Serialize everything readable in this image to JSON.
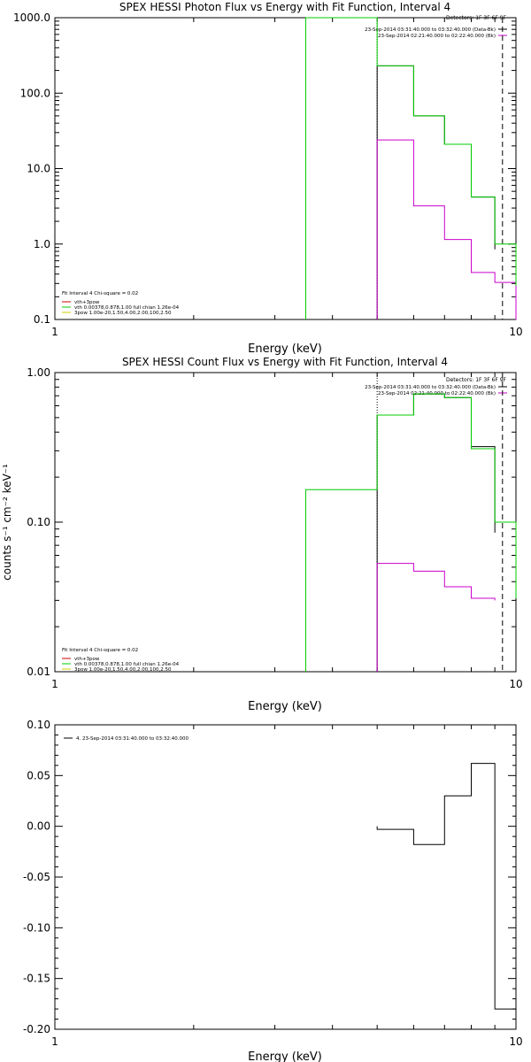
{
  "chart_data": [
    {
      "type": "line",
      "title": "SPEX HESSI Photon Flux vs Energy with Fit Function, Interval 4",
      "xlabel": "Energy (keV)",
      "ylabel": "",
      "xscale": "log",
      "yscale": "log",
      "xlim": [
        1,
        10
      ],
      "ylim": [
        0.1,
        1000
      ],
      "x_ticks": [
        "1",
        "10"
      ],
      "y_ticks": [
        "0.1",
        "1.0",
        "10.0",
        "100.0",
        "1000.0"
      ],
      "detectors_label": "Detectors: 1F 3F 6F 9F",
      "header_lines": [
        {
          "text": "23-Sep-2014 03:31:40.000 to 03:32:40.000 (Data-Bk)",
          "color": "#000000"
        },
        {
          "text": "23-Sep-2014 02:21:40.000 to 02:22:40.000 (Bk)",
          "color": "#cc00cc"
        }
      ],
      "fit_label": "Fit Interval  4   Chi-square = 0.02",
      "legend": [
        {
          "text": "vth+3pow",
          "color": "#cc0000"
        },
        {
          "text": "vth 0.00378,0.878,1.00  full chian 1.26e-04",
          "color": "#00cc00"
        },
        {
          "text": "3pow 1.00e-20,1.50,4.00,2.00,100,2.50",
          "color": "#cccc00"
        }
      ],
      "series": [
        {
          "name": "Data-Bk",
          "color": "#000000",
          "edges": [
            5,
            6,
            7,
            8,
            9
          ],
          "values": [
            230,
            50,
            21,
            4.2,
            0.85
          ]
        },
        {
          "name": "Bk",
          "color": "#cc00cc",
          "edges": [
            5,
            6,
            7,
            8,
            9,
            10
          ],
          "values": [
            24,
            3.2,
            1.15,
            0.42,
            0.31
          ]
        },
        {
          "name": "vth",
          "color": "#00cc00",
          "edges": [
            3.5,
            5,
            6,
            7,
            8,
            9,
            10
          ],
          "values": [
            1000,
            230,
            50,
            21,
            4.2,
            1.0,
            0.28
          ]
        }
      ],
      "vlines": [
        {
          "x": 5,
          "style": "dotted"
        },
        {
          "x": 9.35,
          "style": "dashed"
        }
      ]
    },
    {
      "type": "line",
      "title": "SPEX HESSI Count Flux vs Energy with Fit Function, Interval 4",
      "xlabel": "Energy (keV)",
      "ylabel": "counts s⁻¹ cm⁻² keV⁻¹",
      "xscale": "log",
      "yscale": "log",
      "xlim": [
        1,
        10
      ],
      "ylim": [
        0.01,
        1
      ],
      "x_ticks": [
        "1",
        "10"
      ],
      "y_ticks": [
        "0.01",
        "0.10",
        "1.00"
      ],
      "detectors_label": "Detectors: 1F 3F 6F 9F",
      "header_lines": [
        {
          "text": "23-Sep-2014 03:31:40.000 to 03:32:40.000 (Data-Bk)",
          "color": "#000000"
        },
        {
          "text": "23-Sep-2014 02:21:40.000 to 02:22:40.000 (Bk)",
          "color": "#cc00cc"
        }
      ],
      "fit_label": "Fit Interval  4   Chi-square = 0.02",
      "legend": [
        {
          "text": "vth+3pow",
          "color": "#cc0000"
        },
        {
          "text": "vth 0.00378,0.878,1.00  full chian 1.26e-04",
          "color": "#00cc00"
        },
        {
          "text": "3pow 1.00e-20,1.50,4.00,2.00,100,2.50",
          "color": "#cccc00"
        }
      ],
      "series": [
        {
          "name": "Data-Bk",
          "color": "#000000",
          "edges": [
            5,
            6,
            7,
            8,
            9
          ],
          "values": [
            0.52,
            0.72,
            0.68,
            0.32,
            0.085
          ]
        },
        {
          "name": "Bk",
          "color": "#cc00cc",
          "edges": [
            5,
            6,
            7,
            8,
            9
          ],
          "values": [
            0.053,
            0.047,
            0.037,
            0.031,
            0.03
          ]
        },
        {
          "name": "vth",
          "color": "#00cc00",
          "edges": [
            3.5,
            5,
            6,
            7,
            8,
            9,
            10
          ],
          "values": [
            0.165,
            0.52,
            0.72,
            0.68,
            0.31,
            0.1,
            0.031
          ]
        }
      ],
      "vlines": [
        {
          "x": 5,
          "style": "dotted"
        },
        {
          "x": 9.35,
          "style": "dashed"
        }
      ]
    },
    {
      "type": "line",
      "title": "",
      "xlabel": "Energy (keV)",
      "ylabel": "",
      "xscale": "log",
      "yscale": "linear",
      "xlim": [
        1,
        10
      ],
      "ylim": [
        -0.2,
        0.1
      ],
      "x_ticks": [
        "1",
        "10"
      ],
      "y_ticks": [
        "-0.20",
        "-0.15",
        "-0.10",
        "-0.05",
        "0.00",
        "0.05",
        "0.10"
      ],
      "legend": [
        {
          "text": "4. 23-Sep-2014 03:31:40.000 to 03:32:40.000",
          "color": "#000000"
        }
      ],
      "series": [
        {
          "name": "4. 23-Sep-2014 03:31:40.000 to 03:32:40.000",
          "color": "#000000",
          "edges": [
            5,
            6,
            7,
            8,
            9,
            10
          ],
          "values": [
            -0.003,
            -0.018,
            0.03,
            0.062,
            -0.18
          ]
        }
      ]
    }
  ]
}
